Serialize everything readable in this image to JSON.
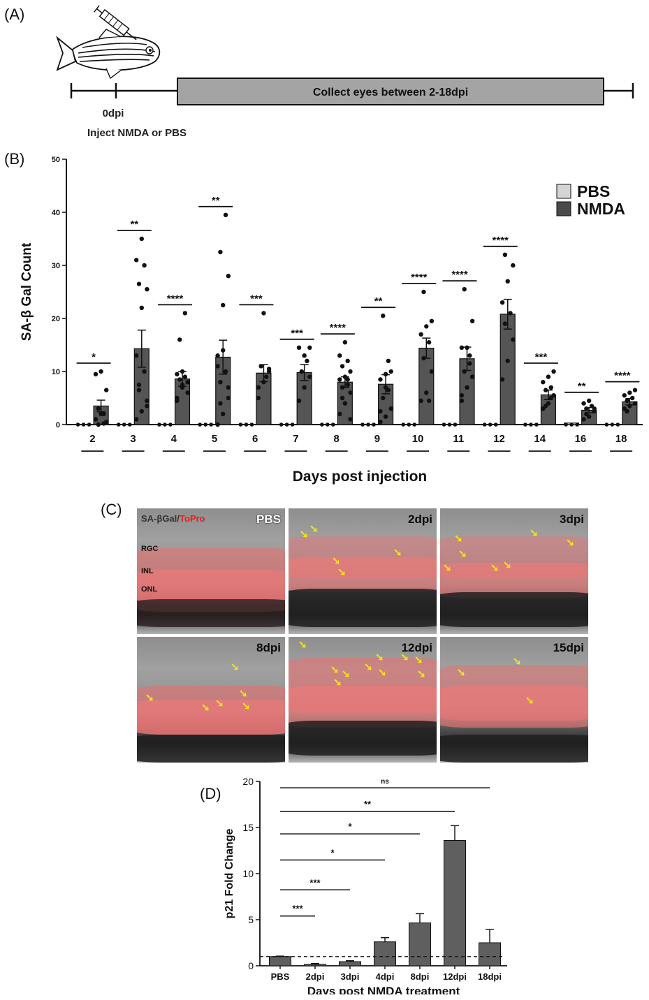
{
  "panel_a": {
    "letter": "(A)",
    "timeline_label": "Collect eyes between 2-18dpi",
    "day_label": "0dpi",
    "inject_label": "Inject NMDA or PBS"
  },
  "panel_c": {
    "letter": "(C)",
    "stain_label_a": "SA-βGal",
    "stain_label_sep": "/",
    "stain_label_b": "ToPro",
    "layer_labels": [
      "RGC",
      "INL",
      "ONL"
    ],
    "tiles": [
      "PBS",
      "2dpi",
      "3dpi",
      "8dpi",
      "12dpi",
      "15dpi"
    ],
    "arrow_glyph": "➘"
  },
  "chart_data": [
    {
      "type": "bar",
      "panel": "(B)",
      "ylabel": "SA-β Gal Count",
      "xlabel": "Days post injection",
      "ylim": [
        0,
        50
      ],
      "yticks": [
        0,
        10,
        20,
        30,
        40,
        50
      ],
      "categories": [
        "2",
        "3",
        "4",
        "5",
        "6",
        "7",
        "8",
        "9",
        "10",
        "11",
        "12",
        "14",
        "16",
        "18"
      ],
      "legend": {
        "position": "top-right"
      },
      "series": [
        {
          "name": "PBS",
          "color": "#d4d4d4",
          "values": [
            0,
            0,
            0,
            0,
            0,
            0,
            0,
            0,
            0,
            0,
            0,
            0,
            0.3,
            0
          ]
        },
        {
          "name": "NMDA",
          "color": "#555555",
          "values": [
            3.5,
            14.3,
            8.6,
            12.7,
            9.7,
            9.8,
            8.0,
            7.6,
            14.4,
            12.4,
            20.8,
            5.6,
            2.7,
            4.3
          ],
          "errors": [
            1.1,
            3.5,
            1.4,
            3.2,
            1.6,
            1.5,
            1.0,
            1.8,
            1.9,
            2.2,
            2.8,
            0.9,
            0.5,
            0.6
          ]
        }
      ],
      "points": [
        [
          1.0,
          2.0,
          0.5,
          0,
          0.2,
          9.5,
          10.0,
          6.5,
          3.0,
          2.0
        ],
        [
          1.0,
          2.5,
          3.5,
          6.5,
          10.0,
          13.0,
          22.0,
          25.5,
          26.5,
          30.0,
          31.0,
          35.0,
          4.5,
          7.5
        ],
        [
          5.0,
          7.0,
          8.0,
          8.5,
          9.0,
          9.5,
          10.0,
          6.0,
          16.0,
          21.0,
          4.5,
          7.5,
          8.0
        ],
        [
          0,
          2.0,
          5.0,
          8.0,
          10.0,
          13.0,
          22.5,
          28.0,
          32.5,
          39.5,
          11.0,
          14.0,
          7.0,
          4.0
        ],
        [
          5.0,
          8.0,
          10.0,
          11.0,
          9.0,
          7.0,
          21.0,
          10.5
        ],
        [
          4.5,
          7.0,
          9.0,
          10.0,
          12.0,
          14.5,
          13.0,
          14.5
        ],
        [
          2.0,
          4.0,
          6.0,
          7.0,
          7.5,
          8.5,
          9.0,
          10.0,
          11.0,
          12.0,
          13.0,
          15.5,
          1.0,
          5.0,
          8.5
        ],
        [
          0.5,
          1.5,
          3.0,
          5.0,
          6.5,
          8.5,
          9.5,
          10.0,
          20.5,
          12.0,
          2.5,
          7.0
        ],
        [
          4.5,
          6.0,
          10.0,
          12.5,
          15.5,
          17.0,
          18.5,
          19.5,
          25.0,
          4.5
        ],
        [
          4.5,
          7.0,
          9.0,
          10.0,
          13.0,
          14.5,
          14.5,
          19.5,
          25.5,
          11.5,
          5.5
        ],
        [
          8.5,
          12.0,
          16.0,
          19.0,
          21.0,
          23.0,
          27.0,
          30.0,
          32.0
        ],
        [
          3.0,
          4.0,
          5.5,
          6.5,
          7.0,
          8.0,
          9.0,
          10.0,
          3.5,
          5.0
        ],
        [
          1.0,
          1.5,
          2.5,
          3.0,
          3.5,
          4.0,
          4.5,
          3.0,
          2.0
        ],
        [
          3.0,
          3.5,
          4.0,
          4.5,
          5.0,
          5.5,
          6.0,
          6.5,
          2.5
        ]
      ],
      "significance": [
        "*",
        "**",
        "****",
        "**",
        "***",
        "***",
        "****",
        "**",
        "****",
        "****",
        "****",
        "***",
        "**",
        "****"
      ]
    },
    {
      "type": "bar",
      "panel": "(D)",
      "ylabel": "p21 Fold Change",
      "xlabel": "Days post NMDA treatment",
      "ylim": [
        0,
        20
      ],
      "yticks": [
        0,
        5,
        10,
        15,
        20
      ],
      "categories": [
        "PBS",
        "2dpi",
        "3dpi",
        "4dpi",
        "8dpi",
        "12dpi",
        "18dpi"
      ],
      "values": [
        1.0,
        0.15,
        0.45,
        2.6,
        4.65,
        13.6,
        2.5
      ],
      "errors": [
        0.05,
        0.1,
        0.1,
        0.45,
        1.0,
        1.6,
        1.45
      ],
      "color": "#5f5f5f",
      "reference_line": 1.0,
      "comparisons": [
        {
          "from": "PBS",
          "to": "2dpi",
          "label": "***"
        },
        {
          "from": "PBS",
          "to": "3dpi",
          "label": "***"
        },
        {
          "from": "PBS",
          "to": "4dpi",
          "label": "*"
        },
        {
          "from": "PBS",
          "to": "8dpi",
          "label": "*"
        },
        {
          "from": "PBS",
          "to": "12dpi",
          "label": "**"
        },
        {
          "from": "PBS",
          "to": "18dpi",
          "label": "ns"
        }
      ]
    }
  ]
}
